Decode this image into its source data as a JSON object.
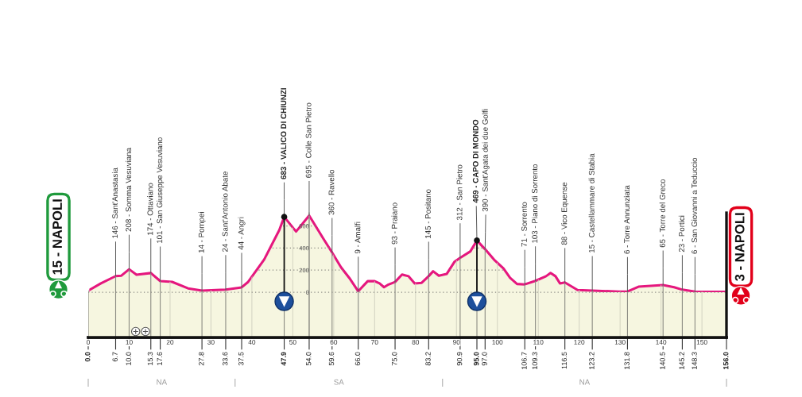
{
  "chart_data": {
    "type": "area",
    "xlim": [
      0,
      156
    ],
    "xticks": [
      0,
      10,
      20,
      30,
      40,
      50,
      60,
      70,
      80,
      90,
      100,
      110,
      120,
      130,
      140,
      150
    ],
    "x2lim": [
      0,
      156
    ],
    "x2ticks": [
      {
        "value": 0,
        "label": "0.0"
      },
      6.7,
      {
        "value": 10,
        "label": "10.0"
      },
      15.3,
      17.6,
      27.8,
      33.6,
      37.5,
      47.9,
      {
        "value": 54,
        "label": "54.0"
      },
      59.6,
      {
        "value": 66,
        "label": "66.0"
      },
      {
        "value": 75,
        "label": "75.0"
      },
      83.2,
      90.9,
      {
        "value": 95,
        "label": "95.0"
      },
      {
        "value": 97,
        "label": "97.0"
      },
      106.7,
      109.3,
      116.5,
      123.2,
      131.8,
      140.5,
      145.2,
      148.3,
      {
        "value": 156,
        "label": "156.0"
      }
    ],
    "ylim": [
      -410,
      720
    ],
    "yticks": [
      0,
      200,
      400,
      600
    ],
    "grid": true,
    "series": [
      {
        "color": "#e5177e",
        "x": [
          0.0,
          3.1,
          6.7,
          8.1,
          10.0,
          11.8,
          15.3,
          17.6,
          20.5,
          24.4,
          27.8,
          33.6,
          37.5,
          39.1,
          43.0,
          46.7,
          47.9,
          50.8,
          54.0,
          57.4,
          59.6,
          61.8,
          63.8,
          66.0,
          68.3,
          70.0,
          71.2,
          72.3,
          73.4,
          75.0,
          76.7,
          78.3,
          79.8,
          81.5,
          83.2,
          84.3,
          85.7,
          87.6,
          89.5,
          90.9,
          93.4,
          95.0,
          97.0,
          99.2,
          101.5,
          103.1,
          104.8,
          106.7,
          109.3,
          111.9,
          113.0,
          114.2,
          115.3,
          116.5,
          119.6,
          123.2,
          129.7,
          131.8,
          134.5,
          140.5,
          143.2,
          145.2,
          148.3,
          156.0
        ],
        "values": [
          15,
          80,
          146,
          150,
          208,
          159,
          174,
          101,
          94,
          35,
          14,
          24,
          44,
          94,
          296,
          563,
          683,
          550,
          695,
          490,
          360,
          225,
          130,
          9,
          100,
          100,
          80,
          45,
          70,
          93,
          160,
          145,
          80,
          85,
          145,
          190,
          150,
          165,
          275,
          312,
          370,
          469,
          390,
          295,
          215,
          130,
          75,
          71,
          103,
          145,
          175,
          145,
          80,
          88,
          20,
          15,
          5,
          6,
          50,
          65,
          45,
          23,
          6,
          3
        ]
      },
      {
        "type": "lollipop",
        "color": "#111111",
        "marker": "circle",
        "x": [
          47.9,
          95.0
        ],
        "values": [
          683,
          469
        ]
      }
    ],
    "bands": [
      {
        "axis": "y",
        "from": -410,
        "to": 0,
        "color": "#f6f6e0"
      }
    ],
    "annotations": [
      "15 - NAPOLI",
      {
        "text": "146 - Sant'Anastasia",
        "x": 6.7,
        "y": 146
      },
      {
        "text": "208 - Somma Vesuviana",
        "x": 10.0,
        "y": 208
      },
      {
        "text": "174 - Ottaviano",
        "x": 15.3,
        "y": 174
      },
      {
        "text": "101 - San Giuseppe Vesuviano",
        "x": 17.6,
        "y": 101
      },
      {
        "text": "14 - Pompei",
        "x": 27.8,
        "y": 14
      },
      {
        "text": "24 - Sant'Antonio Abate",
        "x": 33.6,
        "y": 24
      },
      {
        "text": "44 - Angri",
        "x": 37.5,
        "y": 44
      },
      {
        "text": "683 - VALICO DI CHIUNZI",
        "x": 47.9,
        "y": 683
      },
      {
        "text": "695 - Colle San Pietro",
        "x": 54.0,
        "y": 695
      },
      {
        "text": "360 - Ravello",
        "x": 59.6,
        "y": 360
      },
      {
        "text": "9 - Amalfi",
        "x": 66.0,
        "y": 9
      },
      {
        "text": "93 - Praiano",
        "x": 75.0,
        "y": 93
      },
      {
        "text": "145 - Positano",
        "x": 83.2,
        "y": 145
      },
      {
        "text": "312 - San Pietro",
        "x": 90.9,
        "y": 312
      },
      {
        "text": "469 - CAPO DI MONDO",
        "x": 95.0,
        "y": 469
      },
      {
        "text": "390 - Sant'Agata dei due Golfi",
        "x": 97.0,
        "y": 390
      },
      {
        "text": "71 - Sorrento",
        "x": 106.7,
        "y": 71
      },
      {
        "text": "103 - Piano di Sorrento",
        "x": 109.3,
        "y": 103
      },
      {
        "text": "88 - Vico Equense",
        "x": 116.5,
        "y": 88
      },
      {
        "text": "15 - Castellammare di Stabia",
        "x": 123.2,
        "y": 15
      },
      {
        "text": "6 - Torre Annunziata",
        "x": 131.8,
        "y": 6
      },
      {
        "text": "65 - Torre del Greco",
        "x": 140.5,
        "y": 65
      },
      {
        "text": "23 - Portici",
        "x": 145.2,
        "y": 23
      },
      {
        "text": "6 - San Giovanni a Teduccio",
        "x": 148.3,
        "y": 6
      },
      "3 - NAPOLI",
      "NA",
      "SA",
      "NA"
    ]
  }
}
